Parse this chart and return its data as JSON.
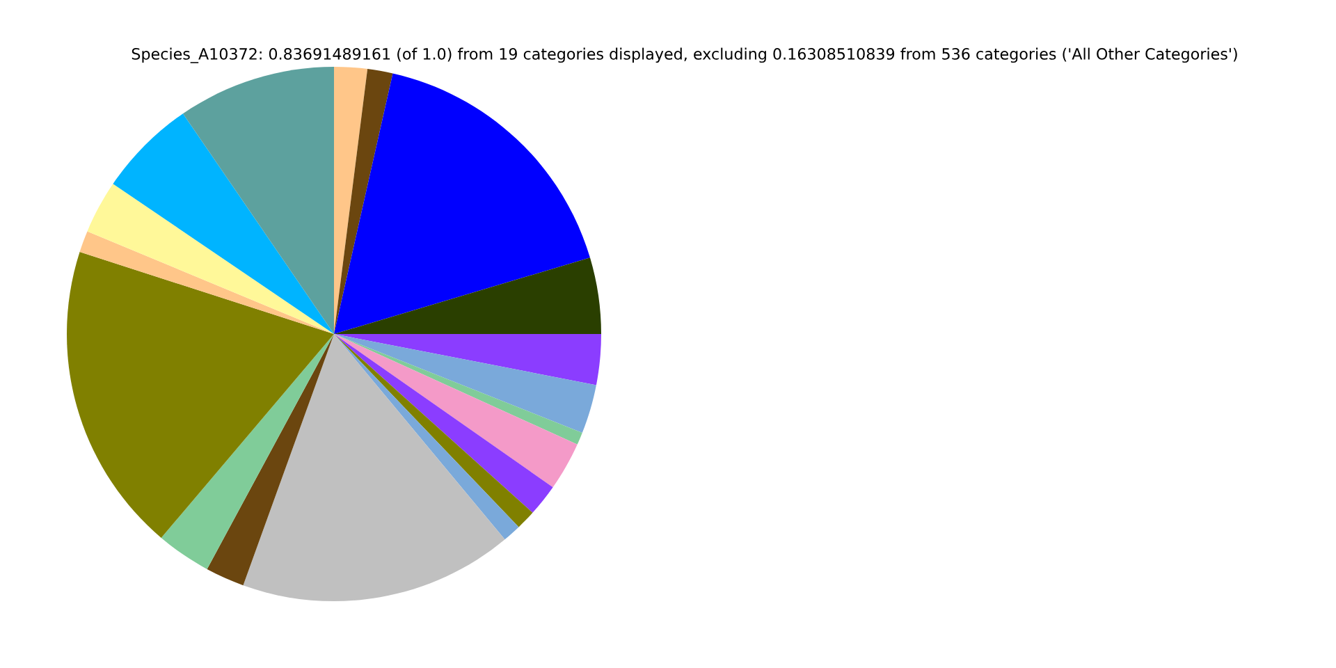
{
  "chart_data": {
    "type": "pie",
    "title": "Species_A10372: 0.83691489161 (of 1.0) from 19 categories displayed, excluding 0.16308510839 from 536 categories ('All Other Categories')",
    "categories": [
      null,
      null,
      null,
      null,
      null,
      null,
      null,
      null,
      null,
      null,
      null,
      null,
      null,
      null,
      null,
      null,
      null,
      null,
      null
    ],
    "values": [
      2.0,
      1.53,
      16.86,
      4.61,
      3.06,
      2.97,
      0.75,
      2.94,
      1.94,
      1.19,
      1.11,
      16.56,
      2.36,
      3.31,
      18.78,
      1.31,
      3.22,
      5.94,
      9.56
    ],
    "colors": [
      "#ffc689",
      "#6b460f",
      "#0000ff",
      "#2a3f00",
      "#8b3dff",
      "#7aa9da",
      "#80cc99",
      "#f49ac8",
      "#8b3dff",
      "#808000",
      "#7aa9da",
      "#c0c0c0",
      "#6b460f",
      "#80cc99",
      "#808000",
      "#ffc689",
      "#fff899",
      "#00b4ff",
      "#5da19e"
    ]
  }
}
